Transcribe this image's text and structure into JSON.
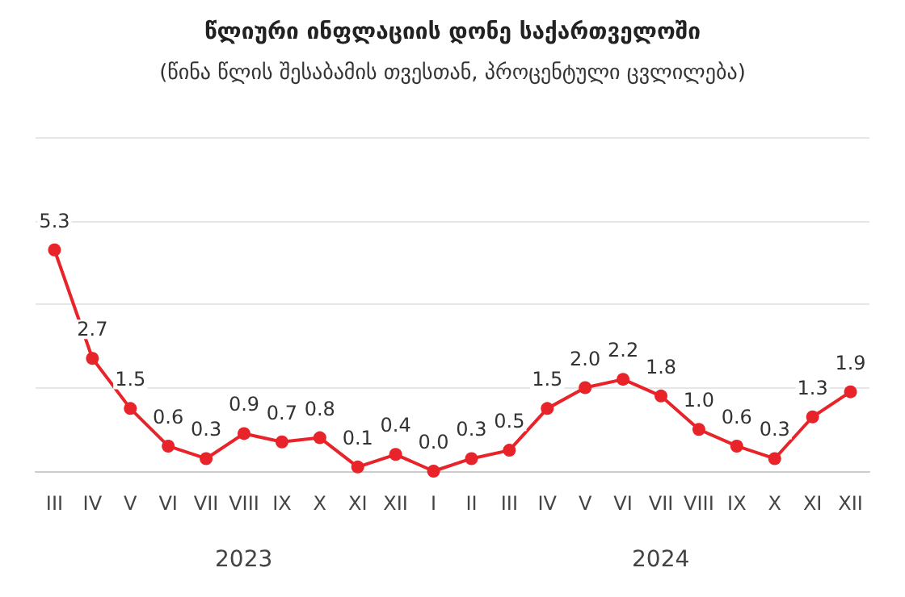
{
  "chart_data": {
    "type": "line",
    "title": "წლიური ინფლაციის დონე საქართველოში",
    "subtitle": "(წინა წლის შესაბამის თვესთან, პროცენტული ცვლილება)",
    "categories": [
      "III",
      "IV",
      "V",
      "VI",
      "VII",
      "VIII",
      "IX",
      "X",
      "XI",
      "XII",
      "I",
      "II",
      "III",
      "IV",
      "V",
      "VI",
      "VII",
      "VIII",
      "IX",
      "X",
      "XI",
      "XII"
    ],
    "values": [
      5.3,
      2.7,
      1.5,
      0.6,
      0.3,
      0.9,
      0.7,
      0.8,
      0.1,
      0.4,
      0.0,
      0.3,
      0.5,
      1.5,
      2.0,
      2.2,
      1.8,
      1.0,
      0.6,
      0.3,
      1.3,
      1.9
    ],
    "value_labels": [
      "5.3",
      "2.7",
      "1.5",
      "0.6",
      "0.3",
      "0.9",
      "0.7",
      "0.8",
      "0.1",
      "0.4",
      "0.0",
      "0.3",
      "0.5",
      "1.5",
      "2.0",
      "2.2",
      "1.8",
      "1.0",
      "0.6",
      "0.3",
      "1.3",
      "1.9"
    ],
    "color": "#e8232a",
    "marker": "circle",
    "grid": "y",
    "tick_labels": "x",
    "ylim": [
      0,
      8
    ],
    "yticks": [
      {
        "value": 0,
        "label": null
      },
      {
        "value": 2,
        "label": null
      },
      {
        "value": 4,
        "label": null
      },
      {
        "value": 6,
        "label": null
      },
      {
        "value": 8,
        "label": null
      }
    ],
    "annotations": [
      "2023",
      "2024"
    ]
  }
}
